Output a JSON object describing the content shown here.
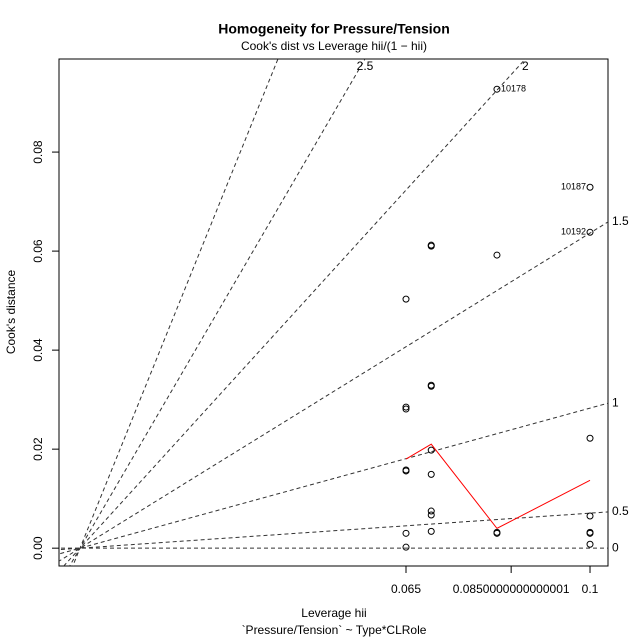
{
  "chart_data": {
    "type": "scatter",
    "title": "Homogeneity for Pressure/Tension",
    "subtitle": "Cook's dist vs Leverage  hii/(1 − hii)",
    "x_label": "Leverage  hii",
    "caption": "`Pressure/Tension` ~ Type*CLRole",
    "y_label": "Cook's distance",
    "xlim": [
      -0.001,
      0.10342
    ],
    "ylim": [
      -0.0036,
      0.0988
    ],
    "xticks": [
      0.065,
      0.0850000000000001,
      0.1
    ],
    "yticks": [
      {
        "value": 0,
        "label": "0.00"
      },
      {
        "value": 0.02,
        "label": "0.02"
      },
      {
        "value": 0.04,
        "label": "0.04"
      },
      {
        "value": 0.06,
        "label": "0.06"
      },
      {
        "value": 0.08,
        "label": "0.08"
      }
    ],
    "contour_levels": [
      0,
      0.5,
      1,
      1.5,
      2,
      2.5,
      3
    ],
    "series": [
      {
        "type": "scatter",
        "color": "#000000",
        "x": [
          0.065,
          0.065,
          0.065,
          0.065,
          0.065,
          0.065,
          0.065,
          0.0698,
          0.0698,
          0.0698,
          0.0698,
          0.0698,
          0.0698,
          0.0698,
          0.0698,
          0.0698,
          0.0823,
          0.0823,
          0.0823,
          0.0823,
          0.1,
          0.1,
          0.1,
          0.1,
          0.1,
          0.1,
          0.1
        ],
        "values": [
          0.0503,
          0.0285,
          0.0281,
          0.0158,
          0.0156,
          0.003,
          0.0002,
          0.0612,
          0.061,
          0.0329,
          0.0327,
          0.0198,
          0.0149,
          0.0075,
          0.0067,
          0.0034,
          0.0927,
          0.0592,
          0.0032,
          0.003,
          0.0729,
          0.0638,
          0.0222,
          0.0065,
          0.0032,
          0.003,
          0.0008
        ],
        "point_ids": [
          null,
          null,
          null,
          null,
          null,
          null,
          null,
          null,
          null,
          null,
          null,
          null,
          null,
          null,
          null,
          null,
          "10178",
          null,
          null,
          null,
          "10187",
          "10192",
          null,
          null,
          null,
          null,
          null
        ]
      },
      {
        "type": "line",
        "color": "#ff0000",
        "x": [
          0.065,
          0.0698,
          0.0823,
          0.1
        ],
        "values": [
          0.018,
          0.021,
          0.004,
          0.0137
        ]
      }
    ]
  }
}
